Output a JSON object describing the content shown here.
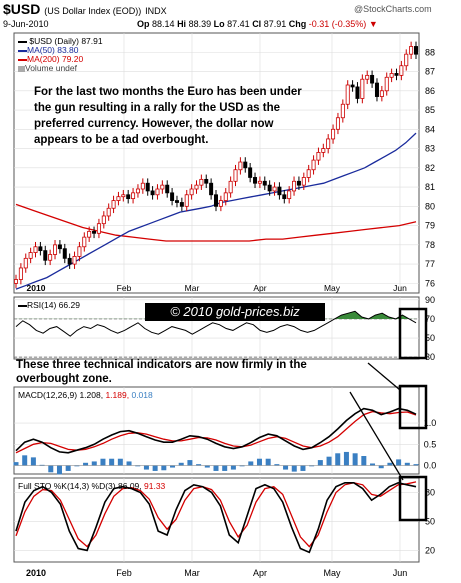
{
  "header": {
    "symbol": "$USD",
    "name": "(US Dollar Index (EOD))",
    "exchange": "INDX",
    "date": "9-Jun-2010",
    "open_label": "Op",
    "open": "88.14",
    "high_label": "Hi",
    "high": "88.39",
    "low_label": "Lo",
    "low": "87.41",
    "close_label": "Cl",
    "close": "87.91",
    "change_label": "Chg",
    "change": "-0.31 (-0.35%)",
    "watermark": "@StockCharts.com"
  },
  "legend": {
    "price": "$USD (Daily) 87.91",
    "ma50": "MA(50) 83.80",
    "ma200": "MA(200) 79.20",
    "volume": "Volume undef",
    "rsi": "RSI(14) 66.29",
    "macd_label": "MACD(12,26,9)",
    "macd_v1": "1.208,",
    "macd_v2": "1.189,",
    "macd_v3": "0.018",
    "sto_label": "Full STO %K(14,3) %D(3)",
    "sto_v1": "86.09,",
    "sto_v2": "91.33"
  },
  "annotations": {
    "main": "For the last two months the Euro has been under the gun resulting in a rally for the USD as the preferred currency. However, the dollar now appears to be a tad overbought.",
    "copyright": "© 2010 gold-prices.biz",
    "indicators": "These three technical indicators are now firmly in the overbought zone."
  },
  "colors": {
    "price_up": "#cc0000",
    "price_down": "#000000",
    "ma50": "#1a2b9c",
    "ma200": "#d40000",
    "rsi_fill": "#3a8a3a",
    "macd_line": "#000000",
    "signal_line": "#d40000",
    "histogram": "#3a7fc2"
  },
  "chart_data": [
    {
      "type": "candlestick",
      "title": "$USD (US Dollar Index (EOD))",
      "x_labels": [
        "2010",
        "Feb",
        "Mar",
        "Apr",
        "May",
        "Jun"
      ],
      "ylim": [
        75.5,
        89
      ],
      "y_ticks": [
        76,
        77,
        78,
        79,
        80,
        81,
        82,
        83,
        84,
        85,
        86,
        87,
        88
      ],
      "close": [
        76.2,
        76.8,
        77.3,
        77.6,
        77.9,
        77.7,
        77.2,
        77.5,
        78.0,
        77.8,
        77.3,
        77.0,
        77.4,
        77.9,
        78.4,
        78.7,
        78.6,
        79.1,
        79.5,
        79.9,
        80.3,
        80.5,
        80.6,
        80.4,
        80.7,
        80.9,
        81.2,
        80.8,
        80.6,
        80.9,
        81.1,
        80.7,
        80.3,
        80.2,
        80.0,
        80.6,
        80.9,
        81.1,
        81.4,
        81.2,
        80.6,
        80.0,
        80.3,
        80.7,
        81.3,
        81.9,
        82.3,
        82.0,
        81.5,
        81.2,
        81.3,
        81.1,
        80.8,
        81.0,
        80.6,
        80.4,
        80.8,
        81.3,
        81.1,
        81.5,
        81.9,
        82.4,
        82.8,
        83.0,
        83.5,
        84.0,
        84.6,
        85.3,
        86.3,
        86.2,
        85.6,
        86.6,
        86.8,
        86.4,
        85.7,
        86.0,
        86.7,
        86.9,
        86.8,
        87.3,
        87.9,
        88.3,
        87.9
      ],
      "series": [
        {
          "name": "MA(50)",
          "values": [
            75.7,
            75.9,
            76.1,
            76.3,
            76.6,
            76.9,
            77.2,
            77.5,
            77.8,
            78.1,
            78.4,
            78.7,
            78.9,
            79.1,
            79.3,
            79.5,
            79.7,
            79.8,
            79.9,
            80.0,
            80.2,
            80.3,
            80.4,
            80.5,
            80.6,
            80.7,
            80.8,
            80.9,
            81.0,
            81.1,
            81.2,
            81.4,
            81.6,
            81.8,
            82.0,
            82.3,
            82.6,
            82.9,
            83.3,
            83.8
          ]
        },
        {
          "name": "MA(200)",
          "values": [
            80.1,
            79.8,
            79.5,
            79.2,
            78.9,
            78.7,
            78.5,
            78.4,
            78.3,
            78.2,
            78.2,
            78.2,
            78.2,
            78.2,
            78.2,
            78.3,
            78.3,
            78.4,
            78.5,
            78.6,
            78.7,
            78.8,
            78.9,
            79.0,
            79.2
          ]
        }
      ]
    },
    {
      "type": "line",
      "title": "RSI(14) 66.29",
      "ylim": [
        28,
        93
      ],
      "y_ticks": [
        30,
        50,
        70,
        90
      ],
      "series": [
        {
          "name": "RSI(14)",
          "values": [
            62,
            68,
            64,
            58,
            55,
            60,
            62,
            57,
            52,
            58,
            62,
            60,
            64,
            62,
            58,
            55,
            58,
            62,
            66,
            60,
            56,
            54,
            58,
            62,
            60,
            58,
            54,
            58,
            62,
            66,
            64,
            60,
            58,
            62,
            66,
            64,
            58,
            56,
            58,
            62,
            64,
            62,
            58,
            56,
            58,
            62,
            66,
            70,
            74,
            76,
            78,
            72,
            70,
            74,
            76,
            72,
            70,
            74,
            70,
            66
          ]
        }
      ]
    },
    {
      "type": "line",
      "title": "MACD(12,26,9)",
      "ylim": [
        -0.2,
        1.85
      ],
      "y_ticks": [
        1.0,
        0.5,
        0.0
      ],
      "series": [
        {
          "name": "MACD",
          "values": [
            0.35,
            0.55,
            0.62,
            0.55,
            0.42,
            0.32,
            0.3,
            0.36,
            0.42,
            0.5,
            0.62,
            0.72,
            0.8,
            0.82,
            0.76,
            0.68,
            0.6,
            0.55,
            0.55,
            0.62,
            0.7,
            0.68,
            0.62,
            0.52,
            0.44,
            0.4,
            0.44,
            0.54,
            0.66,
            0.74,
            0.7,
            0.58,
            0.46,
            0.38,
            0.42,
            0.54,
            0.68,
            0.86,
            1.06,
            1.22,
            1.34,
            1.3,
            1.2,
            1.26,
            1.34,
            1.3,
            1.21
          ]
        },
        {
          "name": "Signal",
          "values": [
            0.3,
            0.4,
            0.5,
            0.54,
            0.52,
            0.45,
            0.38,
            0.36,
            0.38,
            0.44,
            0.52,
            0.62,
            0.7,
            0.76,
            0.77,
            0.74,
            0.68,
            0.62,
            0.58,
            0.58,
            0.62,
            0.66,
            0.65,
            0.6,
            0.52,
            0.46,
            0.44,
            0.48,
            0.56,
            0.64,
            0.68,
            0.64,
            0.55,
            0.46,
            0.42,
            0.46,
            0.55,
            0.68,
            0.86,
            1.04,
            1.2,
            1.27,
            1.24,
            1.22,
            1.25,
            1.26,
            1.19
          ]
        }
      ]
    },
    {
      "type": "line",
      "title": "Full STO %K(14,3) %D(3)",
      "x_labels": [
        "2010",
        "Feb",
        "Mar",
        "Apr",
        "May",
        "Jun"
      ],
      "ylim": [
        8,
        95
      ],
      "y_ticks": [
        80,
        50,
        20
      ],
      "series": [
        {
          "name": "%K",
          "values": [
            40,
            70,
            82,
            86,
            80,
            68,
            40,
            22,
            20,
            44,
            70,
            84,
            86,
            84,
            80,
            68,
            40,
            36,
            62,
            82,
            88,
            86,
            80,
            66,
            36,
            28,
            56,
            84,
            88,
            84,
            70,
            44,
            22,
            18,
            42,
            72,
            86,
            90,
            90,
            84,
            72,
            78,
            86,
            90,
            88,
            86
          ]
        },
        {
          "name": "%D",
          "values": [
            35,
            60,
            76,
            83,
            82,
            72,
            52,
            32,
            24,
            36,
            58,
            76,
            84,
            85,
            82,
            73,
            54,
            42,
            52,
            72,
            84,
            86,
            83,
            72,
            50,
            34,
            46,
            70,
            84,
            86,
            78,
            56,
            34,
            24,
            36,
            60,
            80,
            88,
            90,
            88,
            78,
            76,
            82,
            88,
            89,
            91
          ]
        }
      ]
    }
  ]
}
